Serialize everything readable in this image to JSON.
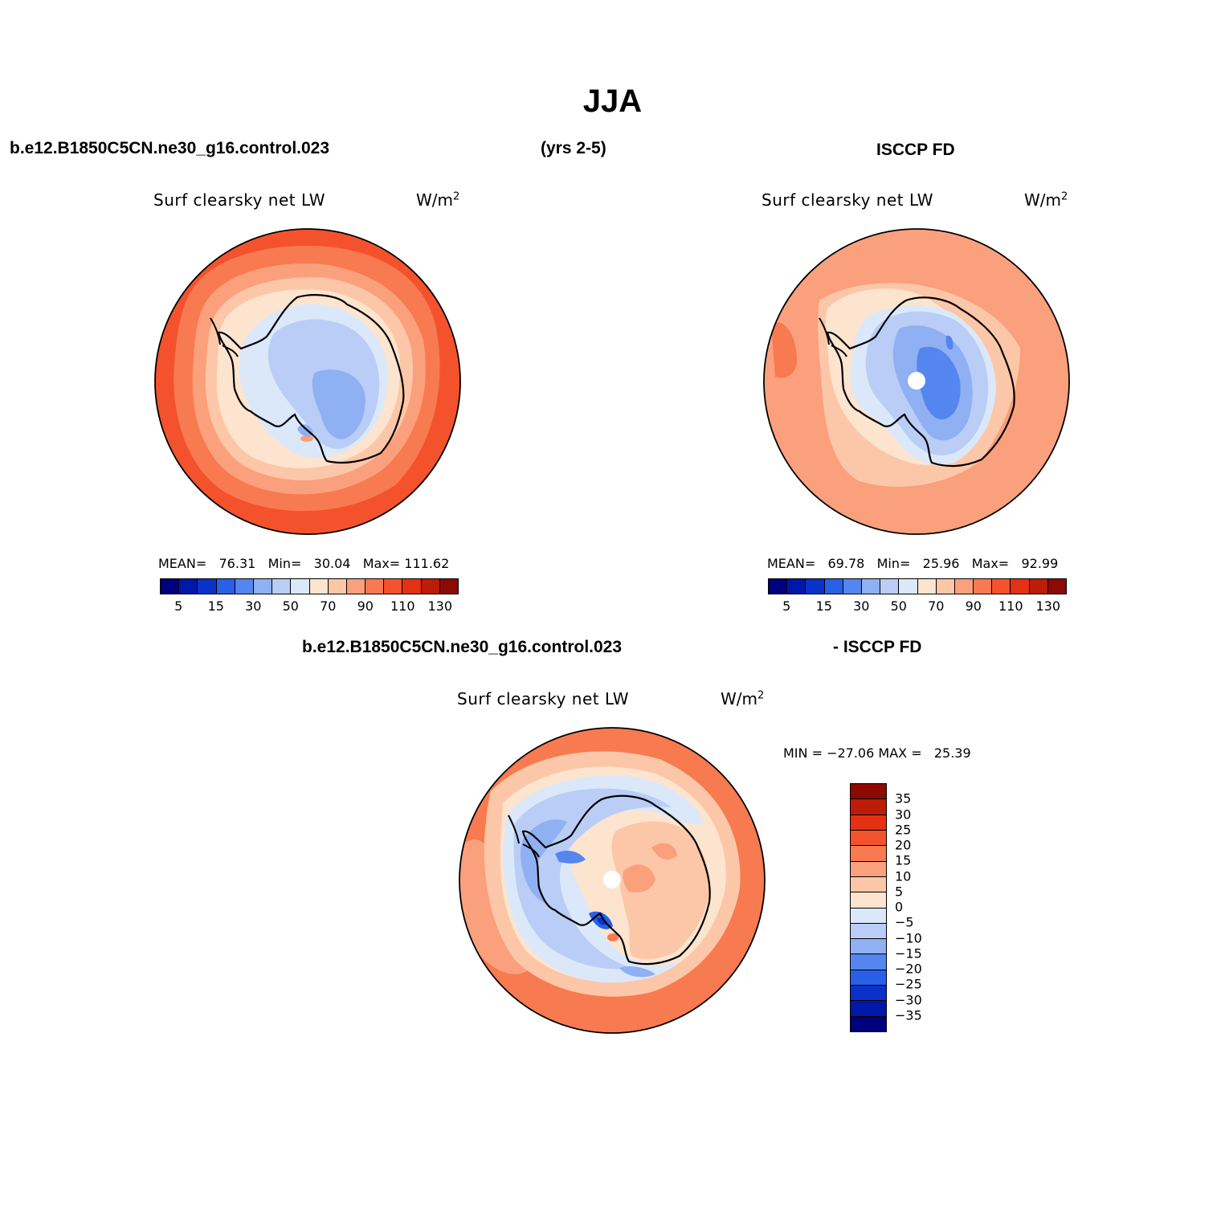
{
  "title": "JJA",
  "case_name": "b.e12.B1850C5CN.ne30_g16.control.023",
  "years": "(yrs 2-5)",
  "obs_name": "ISCCP FD",
  "colors": {
    "abs_scale": [
      "#00007f",
      "#0018a8",
      "#0a32c8",
      "#2860e8",
      "#5585ee",
      "#8fb0f2",
      "#b9cdf6",
      "#dbe8fa",
      "#fde4cf",
      "#fcc7a8",
      "#fba07c",
      "#f87a50",
      "#f4522c",
      "#e43114",
      "#bc1c08",
      "#8c0a00"
    ],
    "diff_scale": [
      "#00007f",
      "#0018a8",
      "#0a32c8",
      "#2860e8",
      "#5585ee",
      "#8fb0f2",
      "#b9cdf6",
      "#dbe8fa",
      "#fde4cf",
      "#fcc7a8",
      "#fba07c",
      "#f87a50",
      "#f4522c",
      "#e43114",
      "#bc1c08",
      "#8c0a00"
    ]
  },
  "panels": [
    {
      "variable": "Surf clearsky net LW",
      "units": "W/m",
      "units_exp": "2",
      "mean_label": "MEAN=",
      "mean": "76.31",
      "min_label": "Min=",
      "min": "30.04",
      "max_label": "Max=",
      "max": "111.62",
      "colorbar_ticks": [
        "5",
        "15",
        "30",
        "50",
        "70",
        "90",
        "110",
        "130"
      ]
    },
    {
      "variable": "Surf clearsky net LW",
      "units": "W/m",
      "units_exp": "2",
      "mean_label": "MEAN=",
      "mean": "69.78",
      "min_label": "Min=",
      "min": "25.96",
      "max_label": "Max=",
      "max": "92.99",
      "colorbar_ticks": [
        "5",
        "15",
        "30",
        "50",
        "70",
        "90",
        "110",
        "130"
      ]
    }
  ],
  "diff": {
    "left_header": "b.e12.B1850C5CN.ne30_g16.control.023",
    "right_header": "- ISCCP FD",
    "variable": "Surf clearsky net LW",
    "units": "W/m",
    "units_exp": "2",
    "min_label": "MIN =",
    "min": "−27.06",
    "max_label": "MAX =",
    "max": "25.39",
    "colorbar_labels": [
      "35",
      "30",
      "25",
      "20",
      "15",
      "10",
      "5",
      "0",
      "−5",
      "−10",
      "−15",
      "−20",
      "−25",
      "−30",
      "−35"
    ]
  }
}
